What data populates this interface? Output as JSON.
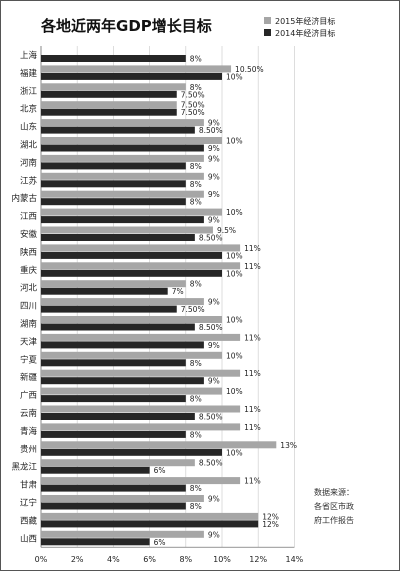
{
  "chart_data": {
    "type": "bar",
    "orientation": "horizontal",
    "title": "各地近两年GDP增长目标",
    "categories": [
      "上海",
      "福建",
      "浙江",
      "北京",
      "山东",
      "湖北",
      "河南",
      "江苏",
      "内蒙古",
      "江西",
      "安徽",
      "陕西",
      "重庆",
      "河北",
      "四川",
      "湖南",
      "天津",
      "宁夏",
      "新疆",
      "广西",
      "云南",
      "青海",
      "贵州",
      "黑龙江",
      "甘肃",
      "辽宁",
      "西藏",
      "山西"
    ],
    "series": [
      {
        "name": "2015年经济目标",
        "color": "#a6a6a6",
        "values": [
          null,
          10.5,
          8,
          7.5,
          9,
          10,
          9,
          9,
          9,
          10,
          9.5,
          11,
          11,
          8,
          9,
          10,
          11,
          10,
          11,
          10,
          11,
          11,
          13,
          8.5,
          11,
          9,
          12,
          9
        ],
        "labels": [
          "",
          "10.50%",
          "8%",
          "7.50%",
          "9%",
          "10%",
          "9%",
          "9%",
          "9%",
          "10%",
          "9.5%",
          "11%",
          "11%",
          "8%",
          "9%",
          "10%",
          "11%",
          "10%",
          "11%",
          "10%",
          "11%",
          "11%",
          "13%",
          "8.50%",
          "11%",
          "9%",
          "12%",
          "9%"
        ]
      },
      {
        "name": "2014年经济目标",
        "color": "#262626",
        "values": [
          8,
          10,
          7.5,
          7.5,
          8.5,
          9,
          8,
          8,
          8,
          9,
          8.5,
          10,
          10,
          7,
          7.5,
          8.5,
          9,
          8,
          9,
          8,
          8.5,
          8,
          10,
          6,
          8,
          8,
          12,
          6
        ],
        "labels": [
          "8%",
          "10%",
          "7.50%",
          "7.50%",
          "8.50%",
          "9%",
          "8%",
          "8%",
          "8%",
          "9%",
          "8.50%",
          "10%",
          "10%",
          "7%",
          "7.50%",
          "8.50%",
          "9%",
          "8%",
          "9%",
          "8%",
          "8.50%",
          "8%",
          "10%",
          "6%",
          "8%",
          "8%",
          "12%",
          "6%"
        ]
      }
    ],
    "x_ticks": [
      "0%",
      "2%",
      "4%",
      "6%",
      "8%",
      "10%",
      "12%",
      "14%"
    ],
    "xlim": [
      0,
      14
    ],
    "legend_position": "top-right",
    "note_lines": [
      "数据来源：",
      "各省区市政",
      "府工作报告"
    ]
  }
}
